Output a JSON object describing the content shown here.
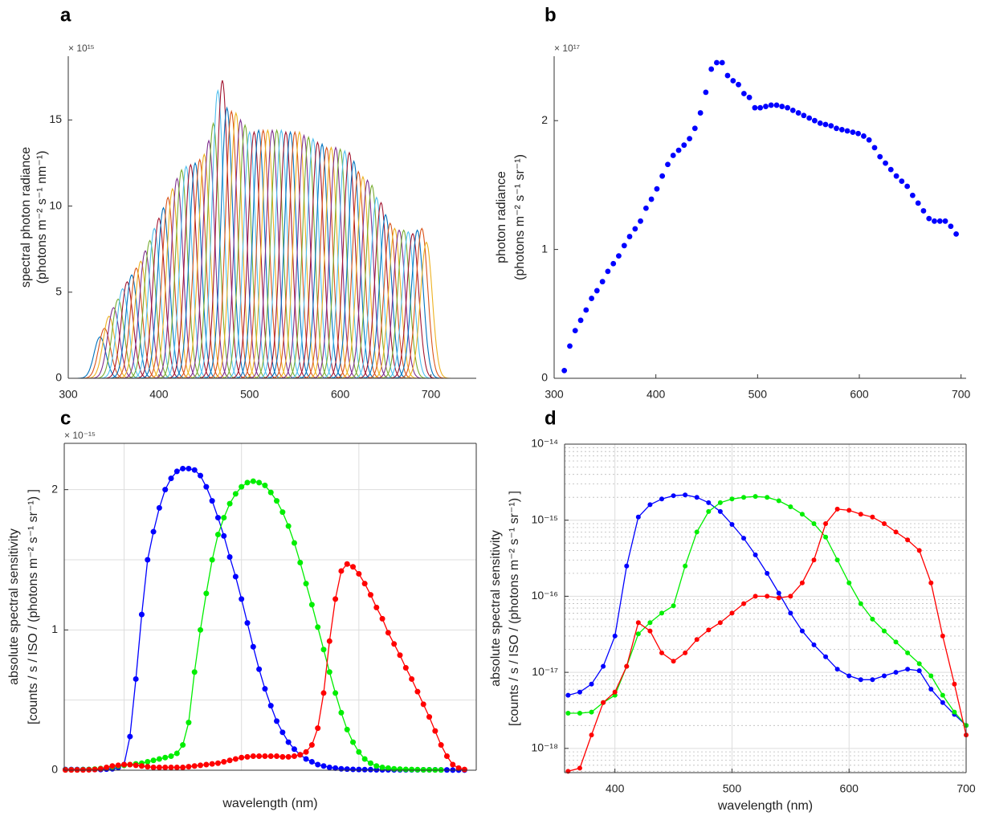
{
  "chart_data": [
    {
      "type": "spectra",
      "panel_label": "a",
      "ylabel": [
        "spectral photon radiance",
        "(photons m⁻² s⁻¹ nm⁻¹)"
      ],
      "y_multiplier": "× 10¹⁵",
      "centers": [
        335,
        340,
        345,
        350,
        355,
        360,
        365,
        370,
        375,
        380,
        385,
        390,
        395,
        400,
        405,
        410,
        415,
        420,
        425,
        430,
        435,
        440,
        445,
        450,
        455,
        460,
        465,
        470,
        475,
        480,
        485,
        490,
        495,
        500,
        505,
        510,
        515,
        520,
        525,
        530,
        535,
        540,
        545,
        550,
        555,
        560,
        565,
        570,
        575,
        580,
        585,
        590,
        595,
        600,
        605,
        610,
        615,
        620,
        625,
        630,
        635,
        640,
        645,
        650,
        655,
        660,
        665,
        670,
        675,
        680,
        685,
        690,
        695
      ],
      "peaks": [
        2.4,
        2.9,
        3.6,
        4.1,
        4.6,
        5.2,
        5.6,
        6.0,
        6.4,
        6.8,
        7.4,
        8.0,
        8.7,
        9.3,
        9.9,
        10.5,
        11.0,
        11.6,
        12.1,
        12.3,
        12.4,
        12.5,
        12.7,
        13.0,
        13.8,
        14.8,
        16.7,
        17.3,
        15.7,
        15.5,
        15.4,
        15.0,
        14.7,
        14.3,
        14.3,
        14.4,
        14.4,
        14.4,
        14.4,
        14.4,
        14.4,
        14.3,
        14.3,
        14.3,
        14.3,
        14.1,
        14.0,
        13.9,
        13.7,
        13.6,
        13.4,
        13.4,
        13.4,
        13.3,
        13.2,
        13.1,
        12.6,
        12.0,
        11.7,
        11.5,
        11.2,
        10.5,
        10.2,
        9.5,
        9.0,
        8.7,
        8.6,
        8.6,
        8.5,
        8.4,
        8.6,
        8.7,
        7.9
      ],
      "colors": [
        "#0072bd",
        "#d95319",
        "#edb120",
        "#7e2f8e",
        "#77ac30",
        "#4dbeee",
        "#a2142f"
      ],
      "xlim": [
        300,
        750
      ],
      "ylim": [
        0,
        18.7
      ],
      "xticks": [
        300,
        400,
        500,
        600,
        700
      ],
      "yticks": [
        0,
        5,
        10,
        15
      ]
    },
    {
      "type": "scatter",
      "panel_label": "b",
      "ylabel": [
        "photon radiance",
        "(photons m⁻² s⁻¹ sr⁻¹)"
      ],
      "y_multiplier": "× 10¹⁷",
      "x": [
        310.0,
        315.4,
        320.7,
        326.1,
        331.4,
        336.8,
        342.1,
        347.5,
        352.8,
        358.2,
        363.5,
        368.9,
        374.2,
        379.6,
        384.9,
        390.3,
        395.6,
        401.0,
        406.3,
        411.7,
        417.0,
        422.4,
        427.7,
        433.1,
        438.4,
        443.8,
        449.1,
        454.5,
        459.8,
        465.2,
        470.5,
        475.9,
        481.2,
        486.6,
        491.9,
        497.3,
        502.6,
        508.0,
        513.3,
        518.7,
        524.0,
        529.4,
        534.7,
        540.1,
        545.4,
        550.8,
        556.1,
        561.5,
        566.8,
        572.2,
        577.5,
        582.9,
        588.2,
        593.6,
        598.9,
        604.3,
        609.6,
        615.0,
        620.3,
        625.7,
        631.0,
        636.4,
        641.7,
        647.1,
        652.4,
        657.8,
        663.1,
        668.5,
        673.8,
        679.2,
        684.5,
        689.9,
        695.2
      ],
      "values": [
        0.06,
        0.25,
        0.37,
        0.45,
        0.53,
        0.62,
        0.68,
        0.75,
        0.83,
        0.89,
        0.95,
        1.03,
        1.1,
        1.16,
        1.22,
        1.32,
        1.39,
        1.47,
        1.57,
        1.66,
        1.73,
        1.77,
        1.81,
        1.86,
        1.94,
        2.06,
        2.22,
        2.4,
        2.45,
        2.45,
        2.35,
        2.31,
        2.28,
        2.21,
        2.18,
        2.1,
        2.1,
        2.11,
        2.12,
        2.12,
        2.11,
        2.1,
        2.08,
        2.06,
        2.04,
        2.02,
        2.0,
        1.98,
        1.97,
        1.96,
        1.94,
        1.93,
        1.92,
        1.91,
        1.9,
        1.88,
        1.85,
        1.79,
        1.72,
        1.67,
        1.62,
        1.57,
        1.53,
        1.49,
        1.42,
        1.36,
        1.3,
        1.24,
        1.22,
        1.22,
        1.22,
        1.18,
        1.12
      ],
      "color": "#0000ff",
      "xlim": [
        300,
        705
      ],
      "ylim": [
        0,
        2.5
      ],
      "xticks": [
        300,
        400,
        500,
        600,
        700
      ],
      "yticks": [
        0,
        1,
        2
      ]
    },
    {
      "type": "line",
      "panel_label": "c",
      "xlabel": "wavelength (nm)",
      "ylabel": [
        "absolute spectral sensitivity",
        "[counts / s / ISO / (photons m⁻² s⁻¹ sr⁻¹) ]"
      ],
      "y_multiplier": "× 10⁻¹⁵",
      "x": [
        350,
        355,
        360,
        365,
        370,
        375,
        380,
        385,
        390,
        395,
        400,
        405,
        410,
        415,
        420,
        425,
        430,
        435,
        440,
        445,
        450,
        455,
        460,
        465,
        470,
        475,
        480,
        485,
        490,
        495,
        500,
        505,
        510,
        515,
        520,
        525,
        530,
        535,
        540,
        545,
        550,
        555,
        560,
        565,
        570,
        575,
        580,
        585,
        590,
        595,
        600,
        605,
        610,
        615,
        620,
        625,
        630,
        635,
        640,
        645,
        650,
        655,
        660,
        665,
        670,
        675,
        680,
        685,
        690
      ],
      "series": [
        {
          "color": "#0000ff",
          "values": [
            0.005,
            0.005,
            0.005,
            0.005,
            0.005,
            0.005,
            0.005,
            0.008,
            0.01,
            0.02,
            0.04,
            0.24,
            0.65,
            1.11,
            1.5,
            1.7,
            1.87,
            2.0,
            2.08,
            2.13,
            2.15,
            2.15,
            2.14,
            2.1,
            2.02,
            1.92,
            1.8,
            1.67,
            1.52,
            1.38,
            1.22,
            1.05,
            0.88,
            0.72,
            0.58,
            0.46,
            0.35,
            0.27,
            0.2,
            0.15,
            0.11,
            0.08,
            0.06,
            0.04,
            0.03,
            0.02,
            0.015,
            0.01,
            0.008,
            0.006,
            0.005,
            0.004,
            0.004,
            0.003,
            0.003,
            0.003,
            0.003,
            0.003,
            0.003,
            0.003,
            0.003,
            0.003,
            0.003,
            0.003,
            0.002,
            0.002,
            0.001,
            0.001,
            0.001
          ]
        },
        {
          "color": "#00ee00",
          "values": [
            0.003,
            0.003,
            0.003,
            0.004,
            0.005,
            0.008,
            0.012,
            0.018,
            0.025,
            0.03,
            0.035,
            0.04,
            0.045,
            0.05,
            0.06,
            0.07,
            0.08,
            0.09,
            0.1,
            0.12,
            0.18,
            0.34,
            0.7,
            1.0,
            1.26,
            1.5,
            1.68,
            1.8,
            1.9,
            1.97,
            2.02,
            2.05,
            2.06,
            2.05,
            2.03,
            1.98,
            1.92,
            1.84,
            1.74,
            1.62,
            1.48,
            1.33,
            1.18,
            1.02,
            0.86,
            0.7,
            0.55,
            0.41,
            0.29,
            0.2,
            0.13,
            0.08,
            0.05,
            0.03,
            0.02,
            0.015,
            0.01,
            0.008,
            0.006,
            0.005,
            0.004,
            0.003,
            0.003,
            0.002,
            0.002,
            null,
            null,
            null,
            null
          ]
        },
        {
          "color": "#ff0000",
          "values": [
            0.002,
            0.002,
            0.002,
            0.002,
            0.003,
            0.005,
            0.01,
            0.02,
            0.03,
            0.035,
            0.04,
            0.04,
            0.035,
            0.03,
            0.025,
            0.02,
            0.02,
            0.02,
            0.02,
            0.02,
            0.02,
            0.025,
            0.03,
            0.035,
            0.04,
            0.045,
            0.05,
            0.06,
            0.07,
            0.08,
            0.09,
            0.095,
            0.1,
            0.1,
            0.1,
            0.1,
            0.1,
            0.095,
            0.095,
            0.1,
            0.11,
            0.13,
            0.18,
            0.3,
            0.55,
            0.92,
            1.22,
            1.42,
            1.47,
            1.45,
            1.4,
            1.33,
            1.25,
            1.16,
            1.08,
            0.98,
            0.9,
            0.82,
            0.73,
            0.65,
            0.56,
            0.47,
            0.38,
            0.28,
            0.18,
            0.1,
            0.04,
            0.015,
            0.005
          ]
        }
      ],
      "xlim": [
        349,
        700
      ],
      "ylim": [
        0,
        2.33
      ],
      "xgrid": [
        400,
        500,
        600
      ],
      "ygrid": [
        0.5,
        1.5
      ],
      "yticks": [
        0,
        1,
        2
      ],
      "grid": true,
      "box": true
    },
    {
      "type": "line",
      "panel_label": "d",
      "ylog": true,
      "xlabel": "wavelength (nm)",
      "ylabel": [
        "absolute spectral sensitivity",
        "[counts / s / ISO / (photons m⁻² s⁻¹ sr⁻¹) ]"
      ],
      "x": [
        360,
        370,
        380,
        390,
        400,
        410,
        420,
        430,
        440,
        450,
        460,
        470,
        480,
        490,
        500,
        510,
        520,
        530,
        540,
        550,
        560,
        570,
        580,
        590,
        600,
        610,
        620,
        630,
        640,
        650,
        660,
        670,
        680,
        690,
        700
      ],
      "series": [
        {
          "color": "#0000ff",
          "values": [
            5e-18,
            5.5e-18,
            7e-18,
            1.2e-17,
            3e-17,
            2.5e-16,
            1.1e-15,
            1.6e-15,
            1.9e-15,
            2.1e-15,
            2.15e-15,
            2e-15,
            1.7e-15,
            1.3e-15,
            8.8e-16,
            5.8e-16,
            3.5e-16,
            2e-16,
            1.1e-16,
            6e-17,
            3.5e-17,
            2.3e-17,
            1.6e-17,
            1.1e-17,
            9e-18,
            8e-18,
            8e-18,
            9e-18,
            1e-17,
            1.1e-17,
            1.05e-17,
            6e-18,
            4e-18,
            2.8e-18,
            2e-18
          ]
        },
        {
          "color": "#00ee00",
          "values": [
            2.9e-18,
            2.9e-18,
            3e-18,
            4e-18,
            5e-18,
            1.2e-17,
            3.2e-17,
            4.5e-17,
            6e-17,
            7.5e-17,
            2.5e-16,
            7e-16,
            1.3e-15,
            1.7e-15,
            1.9e-15,
            2e-15,
            2.05e-15,
            2e-15,
            1.8e-15,
            1.5e-15,
            1.2e-15,
            9e-16,
            6e-16,
            3e-16,
            1.5e-16,
            8e-17,
            5e-17,
            3.5e-17,
            2.5e-17,
            1.8e-17,
            1.3e-17,
            9e-18,
            5e-18,
            3e-18,
            2e-18
          ]
        },
        {
          "color": "#ff0000",
          "values": [
            5e-19,
            5.5e-19,
            1.5e-18,
            4e-18,
            5.5e-18,
            1.2e-17,
            4.5e-17,
            3.5e-17,
            1.8e-17,
            1.4e-17,
            1.8e-17,
            2.7e-17,
            3.6e-17,
            4.5e-17,
            6e-17,
            8e-17,
            1e-16,
            1e-16,
            9.5e-17,
            1e-16,
            1.5e-16,
            3e-16,
            9e-16,
            1.4e-15,
            1.35e-15,
            1.2e-15,
            1.1e-15,
            9e-16,
            7e-16,
            5.5e-16,
            4e-16,
            1.5e-16,
            3e-17,
            7e-18,
            1.5e-18
          ]
        }
      ],
      "xlim": [
        357,
        700
      ],
      "ylim": [
        4.8e-19,
        1e-14
      ],
      "xticks": [
        400,
        500,
        600,
        700
      ],
      "yticks": [
        {
          "value": 1e-18,
          "label": "10⁻¹⁸"
        },
        {
          "value": 1e-17,
          "label": "10⁻¹⁷"
        },
        {
          "value": 1e-16,
          "label": "10⁻¹⁶"
        },
        {
          "value": 1e-15,
          "label": "10⁻¹⁵"
        },
        {
          "value": 1e-14,
          "label": "10⁻¹⁴"
        }
      ],
      "yminor": [
        5e-19,
        6e-19,
        7e-19,
        8e-19,
        9e-19,
        2e-18,
        3e-18,
        4e-18,
        5e-18,
        6e-18,
        7e-18,
        8e-18,
        9e-18,
        2e-17,
        3e-17,
        4e-17,
        5e-17,
        6e-17,
        7e-17,
        8e-17,
        9e-17,
        2e-16,
        3e-16,
        4e-16,
        5e-16,
        6e-16,
        7e-16,
        8e-16,
        9e-16,
        2e-15,
        3e-15,
        4e-15,
        5e-15,
        6e-15,
        7e-15,
        8e-15,
        9e-15
      ],
      "grid": true,
      "box": true
    }
  ]
}
